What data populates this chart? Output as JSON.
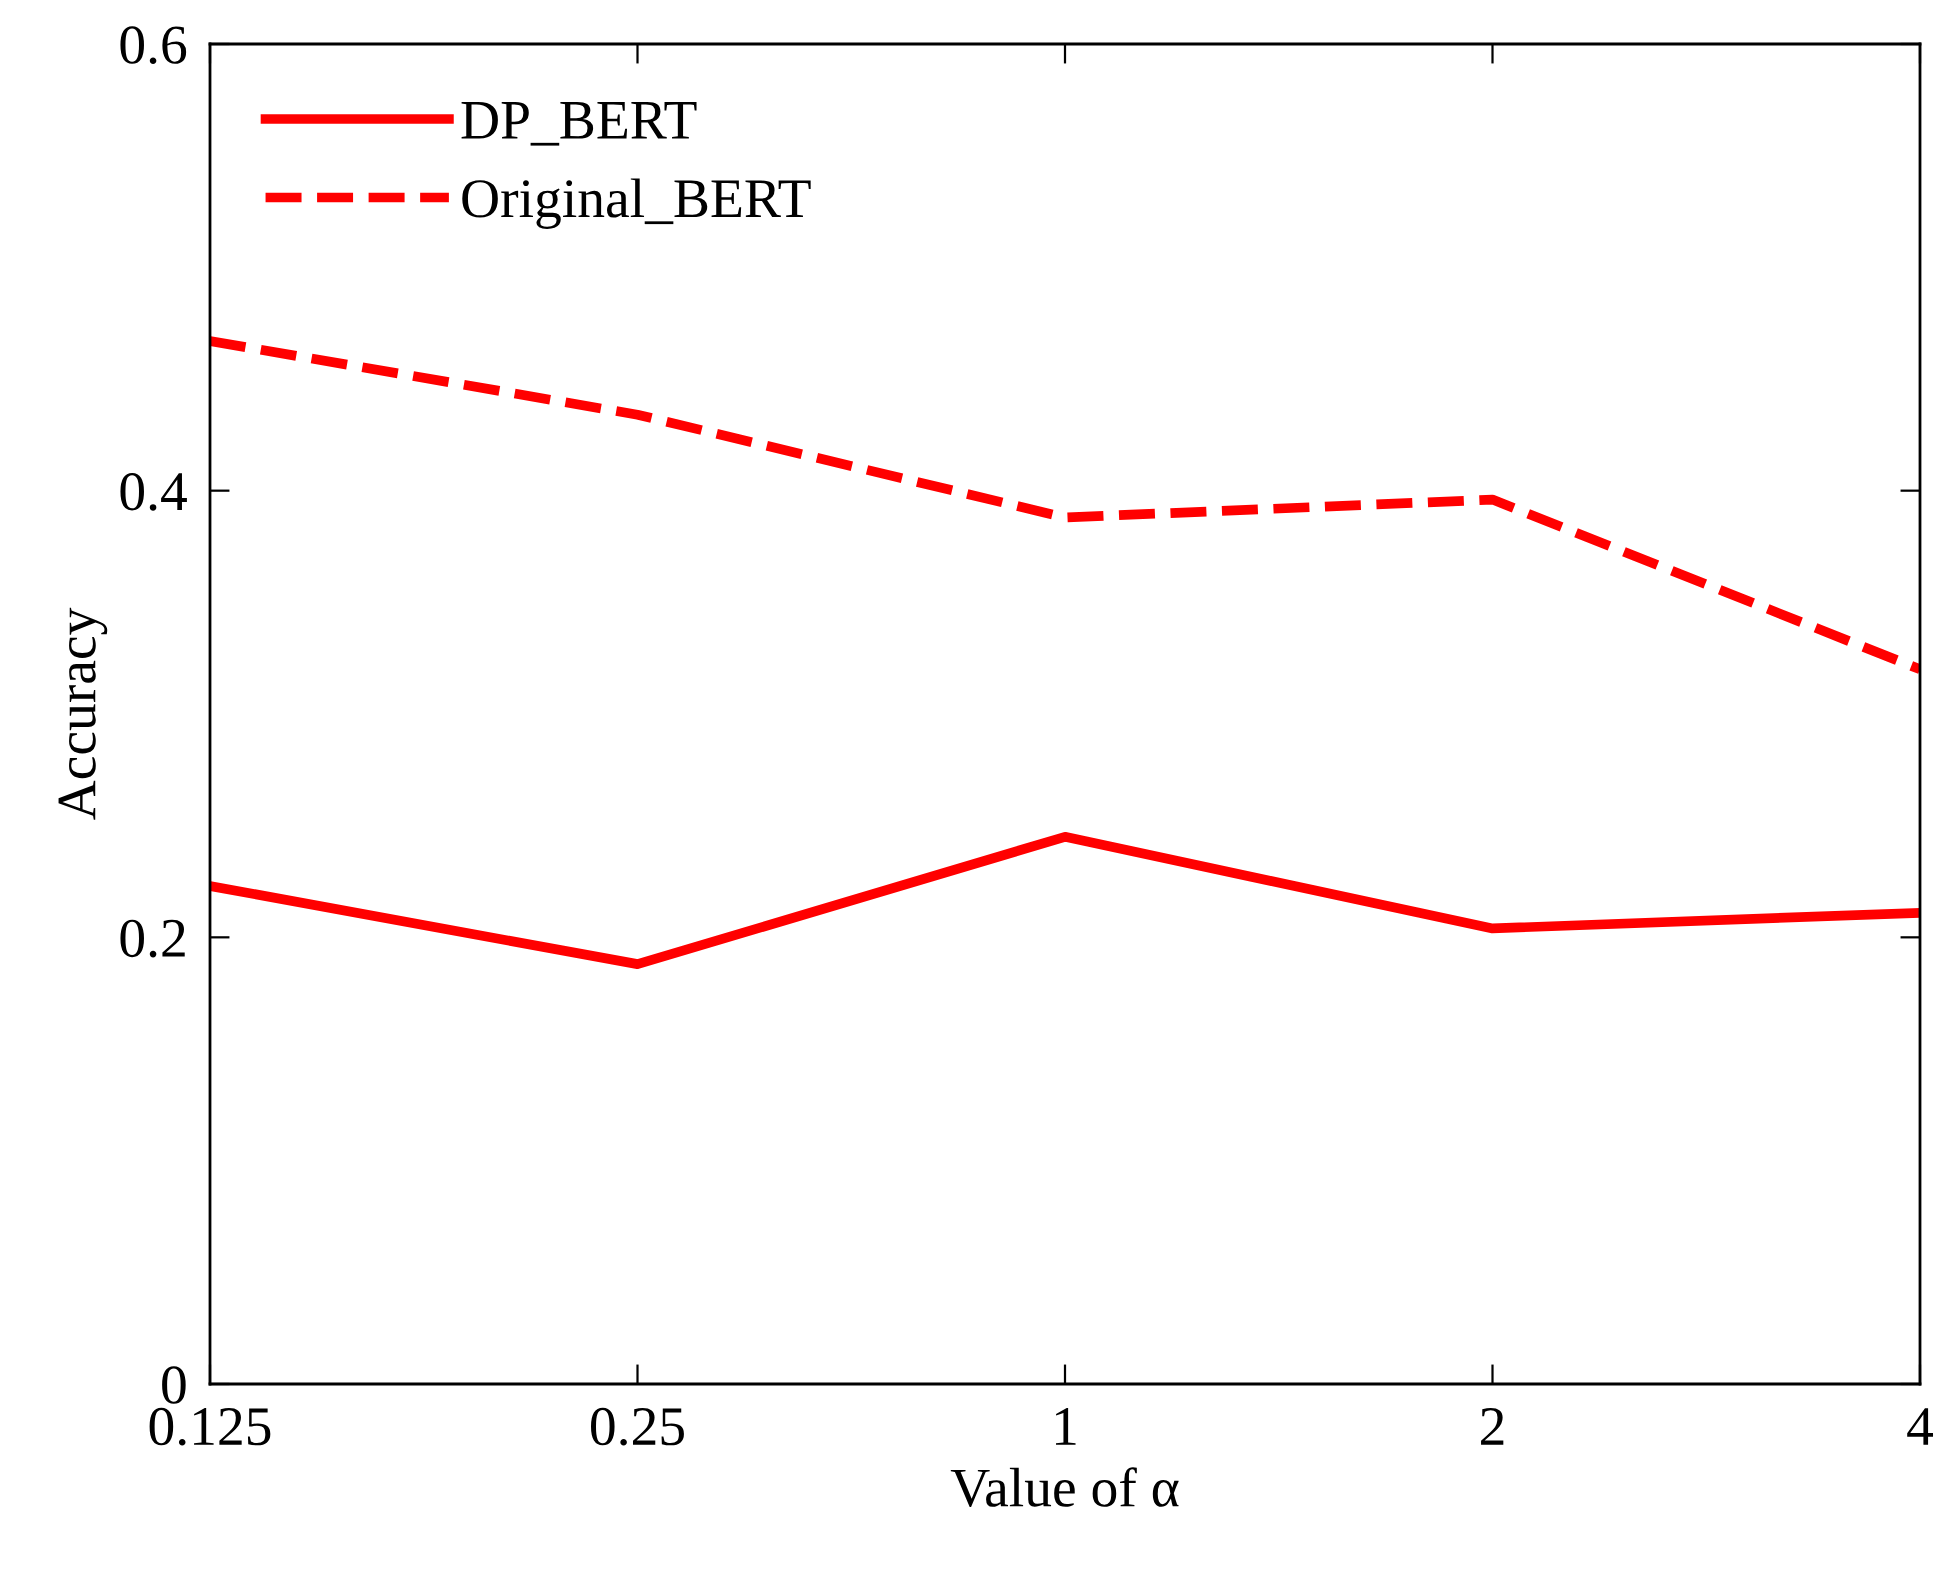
{
  "chart_data": {
    "type": "line",
    "xlabel": "Value of α",
    "ylabel": "Accuracy",
    "categories": [
      "0.125",
      "0.25",
      "1",
      "2",
      "4"
    ],
    "series": [
      {
        "name": "DP_BERT",
        "color": "#ff0000",
        "line_style": "solid",
        "values": [
          0.223,
          0.188,
          0.245,
          0.204,
          0.211
        ]
      },
      {
        "name": "Original_BERT",
        "color": "#ff0000",
        "line_style": "dashed",
        "values": [
          0.467,
          0.434,
          0.388,
          0.396,
          0.32
        ]
      }
    ],
    "ylim": [
      0,
      0.6
    ],
    "yticks": [
      0,
      0.2,
      0.4,
      0.6
    ],
    "grid": false,
    "legend": "top left",
    "marker": "none"
  }
}
